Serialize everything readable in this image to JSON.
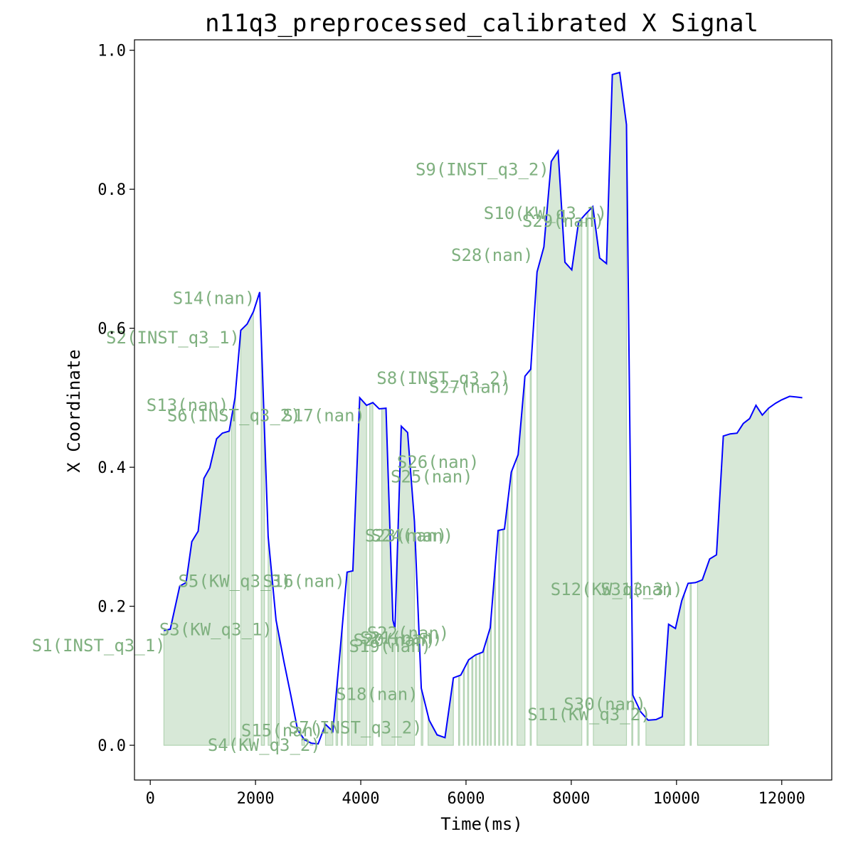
{
  "chart_data": {
    "type": "line",
    "title": "n11q3_preprocessed_calibrated X Signal",
    "xlabel": "Time(ms)",
    "ylabel": "X Coordinate",
    "xlim": [
      -300,
      12950
    ],
    "ylim": [
      -0.05,
      1.015
    ],
    "xticks": [
      0,
      2000,
      4000,
      6000,
      8000,
      10000,
      12000
    ],
    "xtick_labels": [
      "0",
      "2000",
      "4000",
      "6000",
      "8000",
      "10000",
      "12000"
    ],
    "yticks": [
      0.0,
      0.2,
      0.4,
      0.6,
      0.8,
      1.0
    ],
    "ytick_labels": [
      "0.0",
      "0.2",
      "0.4",
      "0.6",
      "0.8",
      "1.0"
    ],
    "grid": false,
    "colors": {
      "line": "#0000ff",
      "span_fill": "#d7e8d7",
      "span_edge": "#b2d3b2",
      "annotation": "#7fb07f"
    },
    "series": [
      {
        "x": [
          260,
          380,
          560,
          680,
          790,
          910,
          1020,
          1130,
          1260,
          1370,
          1500,
          1610,
          1720,
          1840,
          1960,
          2080,
          2240,
          2390,
          2540,
          2670,
          2800,
          2930,
          3060,
          3190,
          3330,
          3470,
          3600,
          3740,
          3850,
          3980,
          4110,
          4230,
          4350,
          4480,
          4610,
          4650,
          4770,
          4890,
          5020,
          5150,
          5300,
          5450,
          5600,
          5760,
          5900,
          6050,
          6180,
          6320,
          6460,
          6610,
          6730,
          6860,
          6990,
          7120,
          7230,
          7350,
          7480,
          7620,
          7750,
          7880,
          8010,
          8140,
          8280,
          8410,
          8540,
          8670,
          8780,
          8920,
          9050,
          9170,
          9320,
          9460,
          9610,
          9730,
          9850,
          9980,
          10100,
          10220,
          10360,
          10490,
          10630,
          10760,
          10890,
          11020,
          11150,
          11270,
          11390,
          11510,
          11630,
          11750,
          11880,
          12000,
          12150,
          12280,
          12390
        ],
        "values": [
          0.165,
          0.167,
          0.229,
          0.234,
          0.293,
          0.308,
          0.384,
          0.399,
          0.441,
          0.449,
          0.452,
          0.5,
          0.597,
          0.606,
          0.624,
          0.652,
          0.3,
          0.18,
          0.12,
          0.072,
          0.022,
          0.008,
          0.003,
          0.002,
          0.03,
          0.02,
          0.13,
          0.249,
          0.251,
          0.5,
          0.489,
          0.493,
          0.484,
          0.485,
          0.18,
          0.168,
          0.459,
          0.45,
          0.322,
          0.082,
          0.036,
          0.015,
          0.011,
          0.097,
          0.101,
          0.123,
          0.13,
          0.134,
          0.169,
          0.309,
          0.311,
          0.393,
          0.418,
          0.531,
          0.541,
          0.681,
          0.717,
          0.84,
          0.855,
          0.695,
          0.684,
          0.753,
          0.765,
          0.775,
          0.701,
          0.693,
          0.965,
          0.968,
          0.893,
          0.072,
          0.048,
          0.036,
          0.037,
          0.041,
          0.174,
          0.168,
          0.208,
          0.233,
          0.234,
          0.238,
          0.268,
          0.274,
          0.445,
          0.448,
          0.449,
          0.463,
          0.47,
          0.489,
          0.475,
          0.485,
          0.492,
          0.497,
          0.502,
          0.501,
          0.5
        ]
      }
    ],
    "spans": [
      [
        260,
        1500
      ],
      [
        1540,
        1620
      ],
      [
        1720,
        1960
      ],
      [
        2110,
        2170
      ],
      [
        2240,
        2300
      ],
      [
        2400,
        2450
      ],
      [
        2880,
        2930
      ],
      [
        3040,
        3090
      ],
      [
        3330,
        3470
      ],
      [
        3530,
        3560
      ],
      [
        3630,
        3650
      ],
      [
        3750,
        3780
      ],
      [
        3820,
        4110
      ],
      [
        4170,
        4230
      ],
      [
        4400,
        4650
      ],
      [
        4700,
        5020
      ],
      [
        5150,
        5180
      ],
      [
        5280,
        5760
      ],
      [
        5860,
        5880
      ],
      [
        5950,
        5970
      ],
      [
        6030,
        6050
      ],
      [
        6110,
        6130
      ],
      [
        6180,
        6200
      ],
      [
        6250,
        6270
      ],
      [
        6330,
        6350
      ],
      [
        6400,
        6420
      ],
      [
        6460,
        6480
      ],
      [
        6540,
        6560
      ],
      [
        6620,
        6640
      ],
      [
        6700,
        6720
      ],
      [
        6780,
        6800
      ],
      [
        6860,
        6880
      ],
      [
        6970,
        7120
      ],
      [
        7220,
        7240
      ],
      [
        7350,
        8200
      ],
      [
        8300,
        8320
      ],
      [
        8420,
        9050
      ],
      [
        9150,
        9170
      ],
      [
        9270,
        9290
      ],
      [
        9420,
        10150
      ],
      [
        10260,
        10280
      ],
      [
        10400,
        11750
      ]
    ],
    "annotations": [
      {
        "text": "S1(INST_q3_1)",
        "x": 290,
        "y": 0.135
      },
      {
        "text": "S2(INST_q3_1)",
        "x": 1700,
        "y": 0.578
      },
      {
        "text": "S3(KW_q3_1)",
        "x": 2320,
        "y": 0.158
      },
      {
        "text": "S4(KW_q3_2)",
        "x": 3240,
        "y": -0.008
      },
      {
        "text": "S5(KW_q3_3)",
        "x": 2680,
        "y": 0.228
      },
      {
        "text": "S6(INST_q3_2)",
        "x": 2860,
        "y": 0.466
      },
      {
        "text": "S7(INST_q3_2)",
        "x": 5170,
        "y": 0.017
      },
      {
        "text": "S8(INST_q3_2)",
        "x": 6840,
        "y": 0.52
      },
      {
        "text": "S9(INST_q3_2)",
        "x": 7580,
        "y": 0.82
      },
      {
        "text": "S10(KW_q3_1)",
        "x": 8680,
        "y": 0.757
      },
      {
        "text": "S11(KW_q3_2)",
        "x": 9510,
        "y": 0.036
      },
      {
        "text": "S12(KW_q3_3)",
        "x": 9950,
        "y": 0.216
      },
      {
        "text": "S13(nan)",
        "x": 1490,
        "y": 0.481
      },
      {
        "text": "S14(nan)",
        "x": 1990,
        "y": 0.635
      },
      {
        "text": "S15(nan)",
        "x": 3290,
        "y": 0.013
      },
      {
        "text": "S16(nan)",
        "x": 3700,
        "y": 0.228
      },
      {
        "text": "S17(nan)",
        "x": 4080,
        "y": 0.466
      },
      {
        "text": "S18(nan)",
        "x": 5090,
        "y": 0.065
      },
      {
        "text": "S19(nan)",
        "x": 5340,
        "y": 0.134
      },
      {
        "text": "S20(nan)",
        "x": 5420,
        "y": 0.143
      },
      {
        "text": "S21(nan)",
        "x": 5550,
        "y": 0.146
      },
      {
        "text": "S22(nan)",
        "x": 5680,
        "y": 0.153
      },
      {
        "text": "S23(nan)",
        "x": 5640,
        "y": 0.293
      },
      {
        "text": "S24(nan)",
        "x": 5760,
        "y": 0.293
      },
      {
        "text": "S25(nan)",
        "x": 6130,
        "y": 0.378
      },
      {
        "text": "S26(nan)",
        "x": 6250,
        "y": 0.399
      },
      {
        "text": "S27(nan)",
        "x": 6860,
        "y": 0.507
      },
      {
        "text": "S28(nan)",
        "x": 7280,
        "y": 0.697
      },
      {
        "text": "S29(nan)",
        "x": 8630,
        "y": 0.746
      },
      {
        "text": "S30(nan)",
        "x": 9420,
        "y": 0.051
      },
      {
        "text": "S31(nan)",
        "x": 10120,
        "y": 0.216
      }
    ]
  }
}
